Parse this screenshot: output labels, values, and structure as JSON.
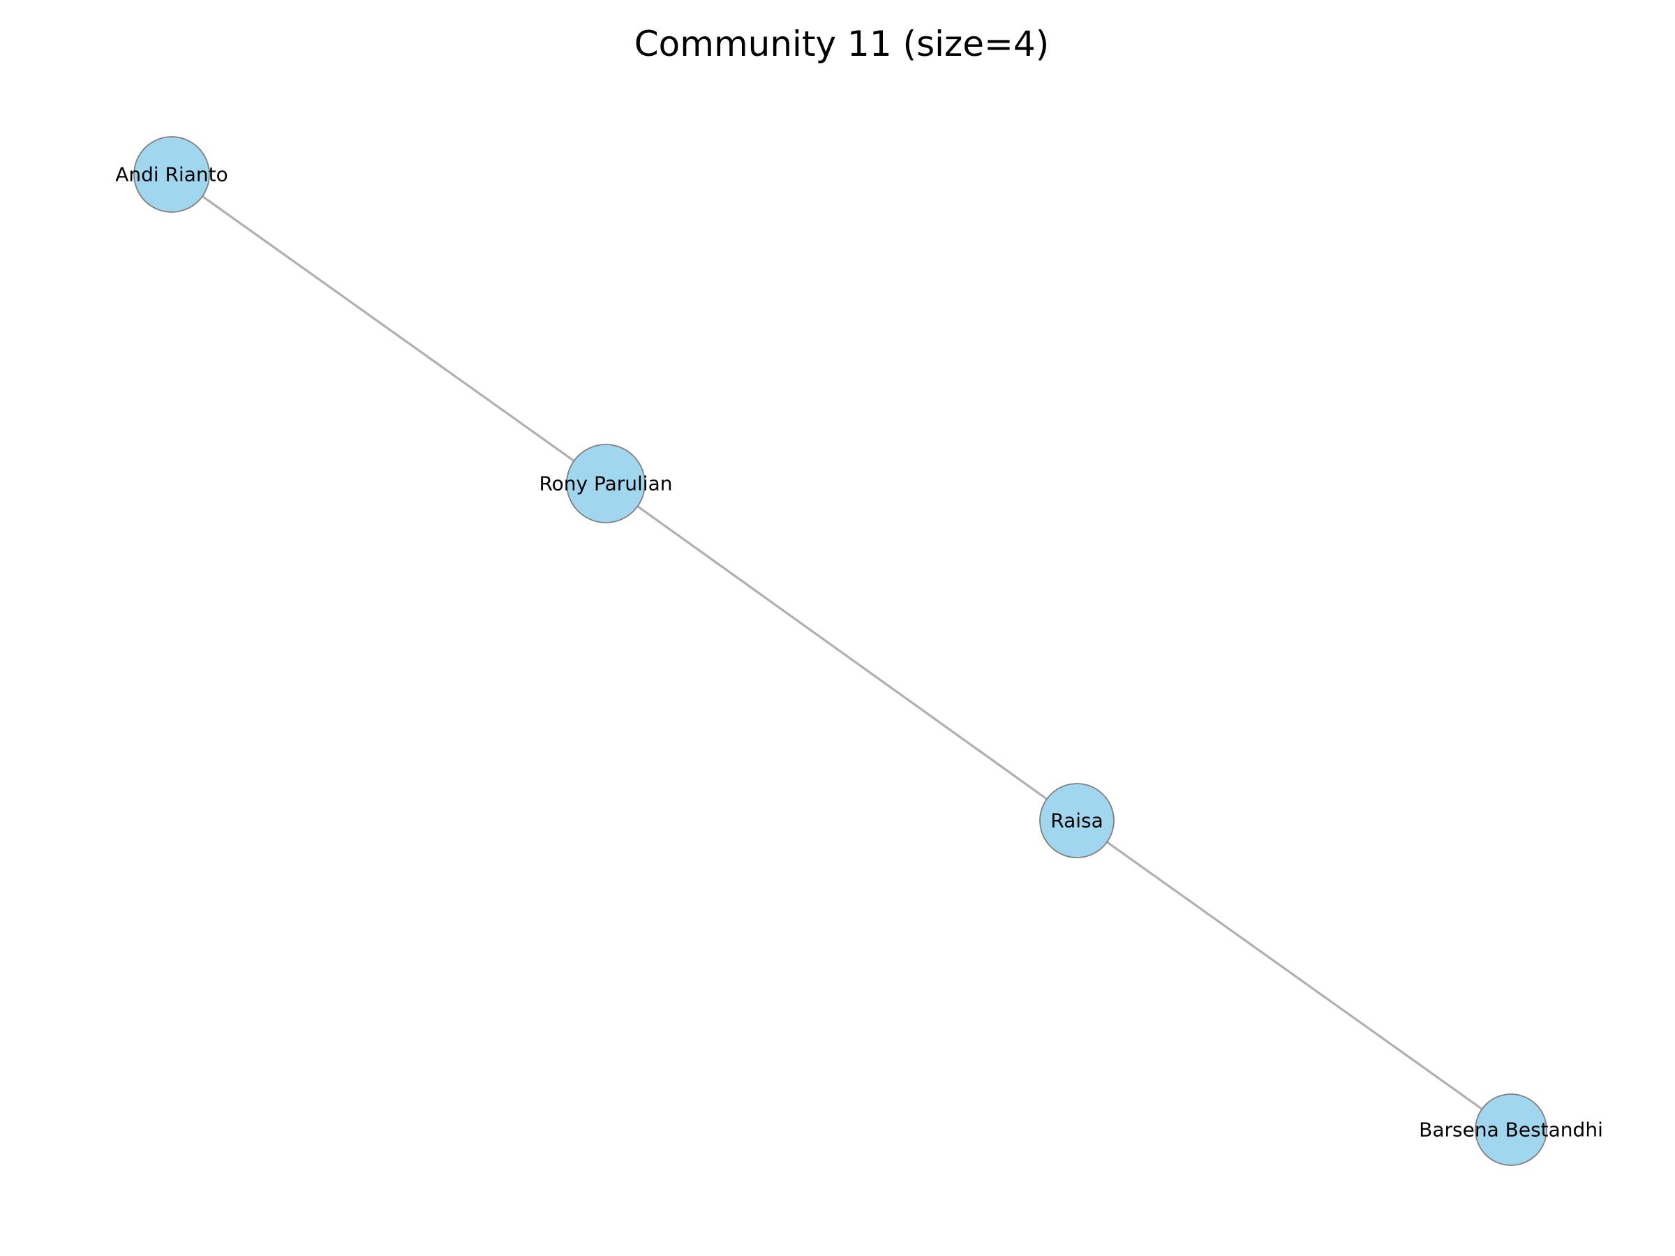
{
  "title": "Community 11 (size=4)",
  "colors": {
    "node_fill": "#a0d6ee",
    "node_stroke": "#808080",
    "edge": "#b0b0b0"
  },
  "nodes": [
    {
      "id": "andi",
      "label": "Andi Rianto"
    },
    {
      "id": "rony",
      "label": "Rony Parulian"
    },
    {
      "id": "raisa",
      "label": "Raisa"
    },
    {
      "id": "barsena",
      "label": "Barsena Bestandhi"
    }
  ],
  "edges": [
    {
      "source": "andi",
      "target": "rony"
    },
    {
      "source": "rony",
      "target": "raisa"
    },
    {
      "source": "raisa",
      "target": "barsena"
    }
  ]
}
